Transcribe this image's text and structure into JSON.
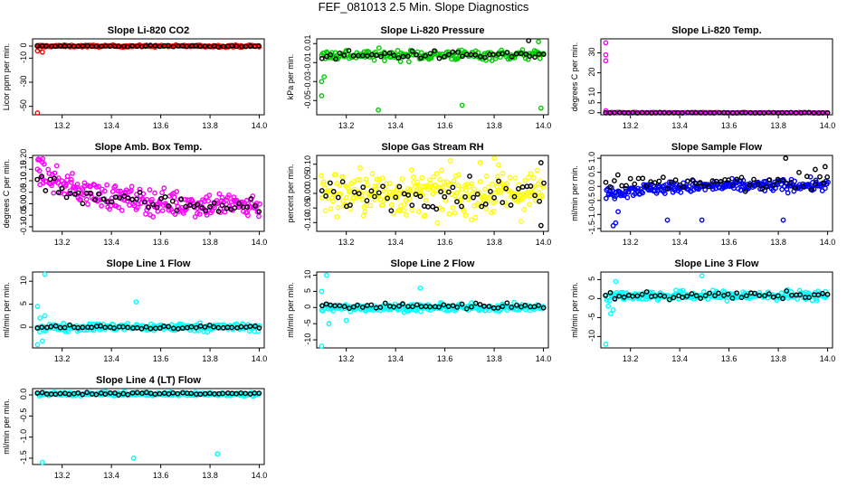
{
  "figure": {
    "title": "FEF_081013  2.5 Min. Slope Diagnostics"
  },
  "chart_data": [
    {
      "type": "scatter",
      "title": "Slope Li-820 CO2",
      "xlabel": "",
      "ylabel": "Licor ppm per min.",
      "xlim": [
        13.08,
        14.02
      ],
      "ylim": [
        -57,
        6
      ],
      "x_ticks": [
        "13.2",
        "13.4",
        "13.6",
        "13.8",
        "14.0"
      ],
      "y_ticks": [
        "0",
        "-10",
        "-30",
        "-50"
      ],
      "x_tick_values": [
        13.2,
        13.4,
        13.6,
        13.8,
        14.0
      ],
      "y_tick_values": [
        0,
        -10,
        -30,
        -50
      ],
      "series": [
        {
          "name": "all",
          "color": "#ff0000",
          "x_start": 13.1,
          "x_end": 14.0,
          "count": 190,
          "center": 0,
          "spread": 0.6,
          "start_offset": 0,
          "outliers": [
            [
              13.1,
              -56
            ],
            [
              13.11,
              -2
            ],
            [
              13.12,
              -5
            ],
            [
              13.1,
              -4
            ]
          ]
        },
        {
          "name": "selected",
          "color": "#000000",
          "x_start": 13.1,
          "x_end": 14.0,
          "count": 50,
          "center": 0,
          "spread": 0.4,
          "start_offset": 0,
          "outliers": []
        }
      ]
    },
    {
      "type": "scatter",
      "title": "Slope Li-820 Pressure",
      "xlabel": "",
      "ylabel": "kPa per min.",
      "xlim": [
        13.08,
        14.02
      ],
      "ylim": [
        -0.065,
        0.015
      ],
      "x_ticks": [
        "13.2",
        "13.4",
        "13.6",
        "13.8",
        "14.0"
      ],
      "y_ticks": [
        "0.01",
        "-0.01",
        "-0.03",
        "-0.05"
      ],
      "x_tick_values": [
        13.2,
        13.4,
        13.6,
        13.8,
        14.0
      ],
      "y_tick_values": [
        0.01,
        -0.01,
        -0.03,
        -0.05
      ],
      "series": [
        {
          "name": "all",
          "color": "#00cc00",
          "x_start": 13.1,
          "x_end": 14.0,
          "count": 190,
          "center": -0.002,
          "spread": 0.004,
          "start_offset": 0,
          "outliers": [
            [
              13.1,
              -0.045
            ],
            [
              13.11,
              -0.025
            ],
            [
              13.1,
              -0.03
            ],
            [
              13.33,
              -0.06
            ],
            [
              13.67,
              -0.055
            ],
            [
              13.99,
              -0.058
            ],
            [
              13.98,
              0.012
            ]
          ]
        },
        {
          "name": "selected",
          "color": "#000000",
          "x_start": 13.1,
          "x_end": 14.0,
          "count": 50,
          "center": -0.002,
          "spread": 0.003,
          "start_offset": 0,
          "outliers": [
            [
              13.94,
              0.014
            ]
          ]
        }
      ]
    },
    {
      "type": "scatter",
      "title": "Slope Li-820 Temp.",
      "xlabel": "",
      "ylabel": "degrees C per min.",
      "xlim": [
        13.08,
        14.02
      ],
      "ylim": [
        -1,
        37
      ],
      "x_ticks": [
        "13.2",
        "13.4",
        "13.6",
        "13.8",
        "14.0"
      ],
      "y_ticks": [
        "0",
        "5",
        "10",
        "20",
        "30"
      ],
      "x_tick_values": [
        13.2,
        13.4,
        13.6,
        13.8,
        14.0
      ],
      "y_tick_values": [
        0,
        5,
        10,
        20,
        30
      ],
      "series": [
        {
          "name": "all",
          "color": "#ff00ff",
          "x_start": 13.1,
          "x_end": 14.0,
          "count": 160,
          "center": 0,
          "spread": 0.15,
          "start_offset": 0,
          "outliers": [
            [
              13.1,
              35
            ],
            [
              13.1,
              29
            ],
            [
              13.1,
              26
            ],
            [
              13.1,
              1
            ]
          ]
        },
        {
          "name": "selected",
          "color": "#000000",
          "x_start": 13.1,
          "x_end": 14.0,
          "count": 50,
          "center": 0,
          "spread": 0.1,
          "start_offset": 0,
          "outliers": []
        }
      ]
    },
    {
      "type": "scatter",
      "title": "Slope Amb. Box Temp.",
      "xlabel": "",
      "ylabel": "degrees C per min.",
      "xlim": [
        13.08,
        14.02
      ],
      "ylim": [
        -0.12,
        0.21
      ],
      "x_ticks": [
        "13.2",
        "13.4",
        "13.6",
        "13.8",
        "14.0"
      ],
      "y_ticks": [
        "0.20",
        "0.15",
        "0.10",
        "0.05",
        "0.00",
        "-0.05",
        "-0.10"
      ],
      "x_tick_values": [
        13.2,
        13.4,
        13.6,
        13.8,
        14.0
      ],
      "y_tick_values": [
        0.2,
        0.15,
        0.1,
        0.05,
        0,
        -0.05,
        -0.1
      ],
      "series": [
        {
          "name": "all",
          "color": "#ff00ff",
          "x_start": 13.1,
          "x_end": 14.0,
          "count": 260,
          "center": -0.01,
          "spread": 0.04,
          "start_offset": 0.15,
          "outliers": [
            [
              13.11,
              0.19
            ],
            [
              13.12,
              0.18
            ],
            [
              13.1,
              0.15
            ]
          ]
        },
        {
          "name": "selected",
          "color": "#000000",
          "x_start": 13.1,
          "x_end": 14.0,
          "count": 55,
          "center": -0.01,
          "spread": 0.03,
          "start_offset": 0.12,
          "outliers": []
        }
      ]
    },
    {
      "type": "scatter",
      "title": "Slope Gas Stream RH",
      "xlabel": "",
      "ylabel": "percent per min.",
      "xlim": [
        13.08,
        14.02
      ],
      "ylim": [
        -0.13,
        0.13
      ],
      "x_ticks": [
        "13.2",
        "13.4",
        "13.6",
        "13.8",
        "14.0"
      ],
      "y_ticks": [
        "0.10",
        "0.05",
        "0.00",
        "-0.05",
        "-0.10"
      ],
      "x_tick_values": [
        13.2,
        13.4,
        13.6,
        13.8,
        14.0
      ],
      "y_tick_values": [
        0.1,
        0.05,
        0,
        -0.05,
        -0.1
      ],
      "series": [
        {
          "name": "all",
          "color": "#ffff00",
          "x_start": 13.1,
          "x_end": 14.0,
          "count": 280,
          "center": 0,
          "spread": 0.055,
          "start_offset": 0,
          "outliers": [
            [
              13.8,
              0.12
            ]
          ]
        },
        {
          "name": "selected",
          "color": "#000000",
          "x_start": 13.1,
          "x_end": 14.0,
          "count": 55,
          "center": 0,
          "spread": 0.035,
          "start_offset": 0,
          "outliers": [
            [
              13.99,
              0.105
            ],
            [
              13.99,
              -0.11
            ]
          ]
        }
      ]
    },
    {
      "type": "scatter",
      "title": "Slope Sample Flow",
      "xlabel": "",
      "ylabel": "ml/min per min.",
      "xlim": [
        13.08,
        14.02
      ],
      "ylim": [
        -1.6,
        1.1
      ],
      "x_ticks": [
        "13.2",
        "13.4",
        "13.6",
        "13.8",
        "14.0"
      ],
      "y_ticks": [
        "1.0",
        "0.5",
        "0.0",
        "-0.5",
        "-1.0",
        "-1.5"
      ],
      "x_tick_values": [
        13.2,
        13.4,
        13.6,
        13.8,
        14.0
      ],
      "y_tick_values": [
        1,
        0.5,
        0,
        -0.5,
        -1,
        -1.5
      ],
      "series": [
        {
          "name": "all",
          "color": "#0000ff",
          "x_start": 13.1,
          "x_end": 14.0,
          "count": 260,
          "center": 0.05,
          "spread": 0.15,
          "start_offset": -0.3,
          "outliers": [
            [
              13.14,
              -1.3
            ],
            [
              13.13,
              -1.4
            ],
            [
              13.35,
              -1.2
            ],
            [
              13.49,
              -1.2
            ],
            [
              13.82,
              -1.2
            ],
            [
              13.15,
              -0.9
            ]
          ]
        },
        {
          "name": "selected",
          "color": "#000000",
          "x_start": 13.1,
          "x_end": 14.0,
          "count": 55,
          "center": 0.1,
          "spread": 0.2,
          "start_offset": 0,
          "outliers": [
            [
              13.83,
              1.0
            ],
            [
              13.99,
              0.7
            ],
            [
              13.95,
              0.6
            ]
          ]
        }
      ]
    },
    {
      "type": "scatter",
      "title": "Slope Line 1 Flow",
      "xlabel": "",
      "ylabel": "ml/min per min.",
      "xlim": [
        13.08,
        14.02
      ],
      "ylim": [
        -4.5,
        12
      ],
      "x_ticks": [
        "13.2",
        "13.4",
        "13.6",
        "13.8",
        "14.0"
      ],
      "y_ticks": [
        "10",
        "5",
        "0"
      ],
      "x_tick_values": [
        13.2,
        13.4,
        13.6,
        13.8,
        14.0
      ],
      "y_tick_values": [
        10,
        5,
        0
      ],
      "series": [
        {
          "name": "all",
          "color": "#00ffff",
          "x_start": 13.1,
          "x_end": 14.0,
          "count": 240,
          "center": 0,
          "spread": 0.6,
          "start_offset": 0,
          "outliers": [
            [
              13.13,
              11.5
            ],
            [
              13.1,
              4.5
            ],
            [
              13.5,
              5.5
            ],
            [
              13.1,
              -3.8
            ],
            [
              13.12,
              -3
            ],
            [
              13.11,
              2
            ],
            [
              13.13,
              2.5
            ]
          ]
        },
        {
          "name": "selected",
          "color": "#000000",
          "x_start": 13.1,
          "x_end": 14.0,
          "count": 50,
          "center": 0,
          "spread": 0.3,
          "start_offset": 0,
          "outliers": []
        }
      ]
    },
    {
      "type": "scatter",
      "title": "Slope Line 2 Flow",
      "xlabel": "",
      "ylabel": "ml/min per min.",
      "xlim": [
        13.08,
        14.02
      ],
      "ylim": [
        -12.5,
        11
      ],
      "x_ticks": [
        "13.2",
        "13.4",
        "13.6",
        "13.8",
        "14.0"
      ],
      "y_ticks": [
        "10",
        "5",
        "0",
        "-5",
        "-10"
      ],
      "x_tick_values": [
        13.2,
        13.4,
        13.6,
        13.8,
        14.0
      ],
      "y_tick_values": [
        10,
        5,
        0,
        -5,
        -10
      ],
      "series": [
        {
          "name": "all",
          "color": "#00ffff",
          "x_start": 13.1,
          "x_end": 14.0,
          "count": 240,
          "center": 0,
          "spread": 0.8,
          "start_offset": 0,
          "outliers": [
            [
              13.12,
              10
            ],
            [
              13.1,
              -12
            ],
            [
              13.1,
              5
            ],
            [
              13.5,
              6
            ],
            [
              13.13,
              -5
            ],
            [
              13.2,
              -4
            ]
          ]
        },
        {
          "name": "selected",
          "color": "#000000",
          "x_start": 13.1,
          "x_end": 14.0,
          "count": 50,
          "center": 0.5,
          "spread": 0.6,
          "start_offset": 0,
          "outliers": []
        }
      ]
    },
    {
      "type": "scatter",
      "title": "Slope Line 3 Flow",
      "xlabel": "",
      "ylabel": "ml/min per min.",
      "xlim": [
        13.08,
        14.02
      ],
      "ylim": [
        -13,
        7
      ],
      "x_ticks": [
        "13.2",
        "13.4",
        "13.6",
        "13.8",
        "14.0"
      ],
      "y_ticks": [
        "5",
        "0",
        "-5",
        "-10"
      ],
      "x_tick_values": [
        13.2,
        13.4,
        13.6,
        13.8,
        14.0
      ],
      "y_tick_values": [
        5,
        0,
        -5,
        -10
      ],
      "series": [
        {
          "name": "all",
          "color": "#00ffff",
          "x_start": 13.1,
          "x_end": 14.0,
          "count": 240,
          "center": 0.8,
          "spread": 0.9,
          "start_offset": 0,
          "outliers": [
            [
              13.1,
              -12
            ],
            [
              13.14,
              4.5
            ],
            [
              13.12,
              -4
            ],
            [
              13.49,
              6
            ],
            [
              13.11,
              -2
            ],
            [
              13.13,
              -3
            ]
          ]
        },
        {
          "name": "selected",
          "color": "#000000",
          "x_start": 13.1,
          "x_end": 14.0,
          "count": 50,
          "center": 0.8,
          "spread": 0.7,
          "start_offset": 0,
          "outliers": []
        }
      ]
    },
    {
      "type": "scatter",
      "title": "Slope Line 4 (LT) Flow",
      "xlabel": "",
      "ylabel": "ml/min per min.",
      "xlim": [
        13.08,
        14.02
      ],
      "ylim": [
        -1.65,
        0.15
      ],
      "x_ticks": [
        "13.2",
        "13.4",
        "13.6",
        "13.8",
        "14.0"
      ],
      "y_ticks": [
        "0.0",
        "-0.5",
        "-1.0",
        "-1.5"
      ],
      "x_tick_values": [
        13.2,
        13.4,
        13.6,
        13.8,
        14.0
      ],
      "y_tick_values": [
        0,
        -0.5,
        -1,
        -1.5
      ],
      "series": [
        {
          "name": "all",
          "color": "#00ffff",
          "x_start": 13.1,
          "x_end": 14.0,
          "count": 240,
          "center": 0.02,
          "spread": 0.03,
          "start_offset": 0,
          "outliers": [
            [
              13.12,
              -1.6
            ],
            [
              13.49,
              -1.5
            ],
            [
              13.83,
              -1.4
            ]
          ]
        },
        {
          "name": "selected",
          "color": "#000000",
          "x_start": 13.1,
          "x_end": 14.0,
          "count": 50,
          "center": 0.03,
          "spread": 0.02,
          "start_offset": 0,
          "outliers": []
        }
      ]
    }
  ]
}
